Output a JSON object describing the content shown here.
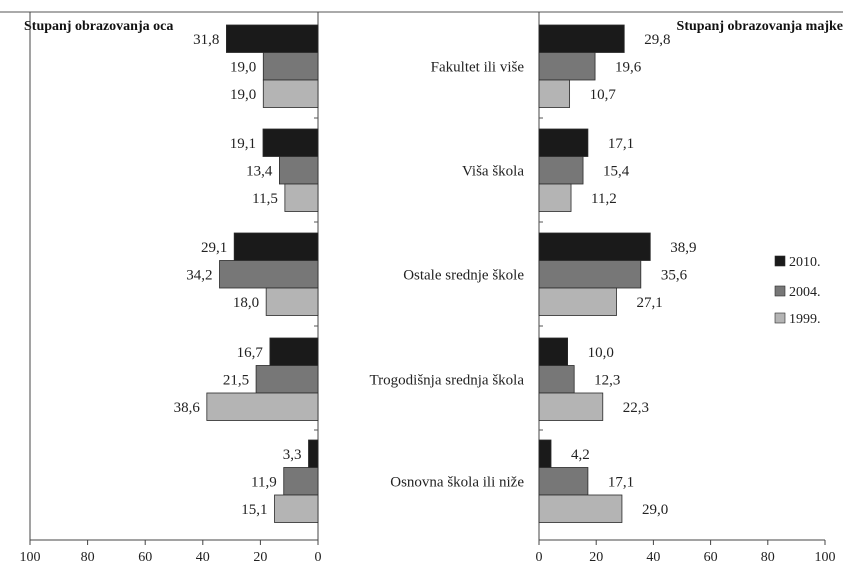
{
  "chart_data": {
    "type": "bar",
    "orientation": "horizontal",
    "categories": [
      "Fakultet ili više",
      "Viša škola",
      "Ostale srednje škole",
      "Trogodišnja srednja škola",
      "Osnovna škola ili niže"
    ],
    "legend_position": "right",
    "panels": [
      {
        "title": "Stupanj obrazovanja oca",
        "direction": "reversed",
        "xlim": [
          0,
          100
        ],
        "ticks": [
          "100",
          "80",
          "60",
          "40",
          "20",
          "0"
        ],
        "series": [
          {
            "name": "2010.",
            "color": "#1a1a1a",
            "values": [
              31.8,
              19.1,
              29.1,
              16.7,
              3.3
            ],
            "labels": [
              "31,8",
              "19,1",
              "29,1",
              "16,7",
              "3,3"
            ]
          },
          {
            "name": "2004.",
            "color": "#777777",
            "values": [
              19.0,
              13.4,
              34.2,
              21.5,
              11.9
            ],
            "labels": [
              "19,0",
              "13,4",
              "34,2",
              "21,5",
              "11,9"
            ]
          },
          {
            "name": "1999.",
            "color": "#b4b4b4",
            "values": [
              19.0,
              11.5,
              18.0,
              38.6,
              15.1
            ],
            "labels": [
              "19,0",
              "11,5",
              "18,0",
              "38,6",
              "15,1"
            ]
          }
        ]
      },
      {
        "title": "Stupanj obrazovanja majke",
        "direction": "normal",
        "xlim": [
          0,
          100
        ],
        "ticks": [
          "0",
          "20",
          "40",
          "60",
          "80",
          "100"
        ],
        "series": [
          {
            "name": "2010.",
            "color": "#1a1a1a",
            "values": [
              29.8,
              17.1,
              38.9,
              10.0,
              4.2
            ],
            "labels": [
              "29,8",
              "17,1",
              "38,9",
              "10,0",
              "4,2"
            ]
          },
          {
            "name": "2004.",
            "color": "#777777",
            "values": [
              19.6,
              15.4,
              35.6,
              12.3,
              17.1
            ],
            "labels": [
              "19,6",
              "15,4",
              "35,6",
              "12,3",
              "17,1"
            ]
          },
          {
            "name": "1999.",
            "color": "#b4b4b4",
            "values": [
              10.7,
              11.2,
              27.1,
              22.3,
              29.0
            ],
            "labels": [
              "10,7",
              "11,2",
              "27,1",
              "22,3",
              "29,0"
            ]
          }
        ]
      }
    ]
  }
}
